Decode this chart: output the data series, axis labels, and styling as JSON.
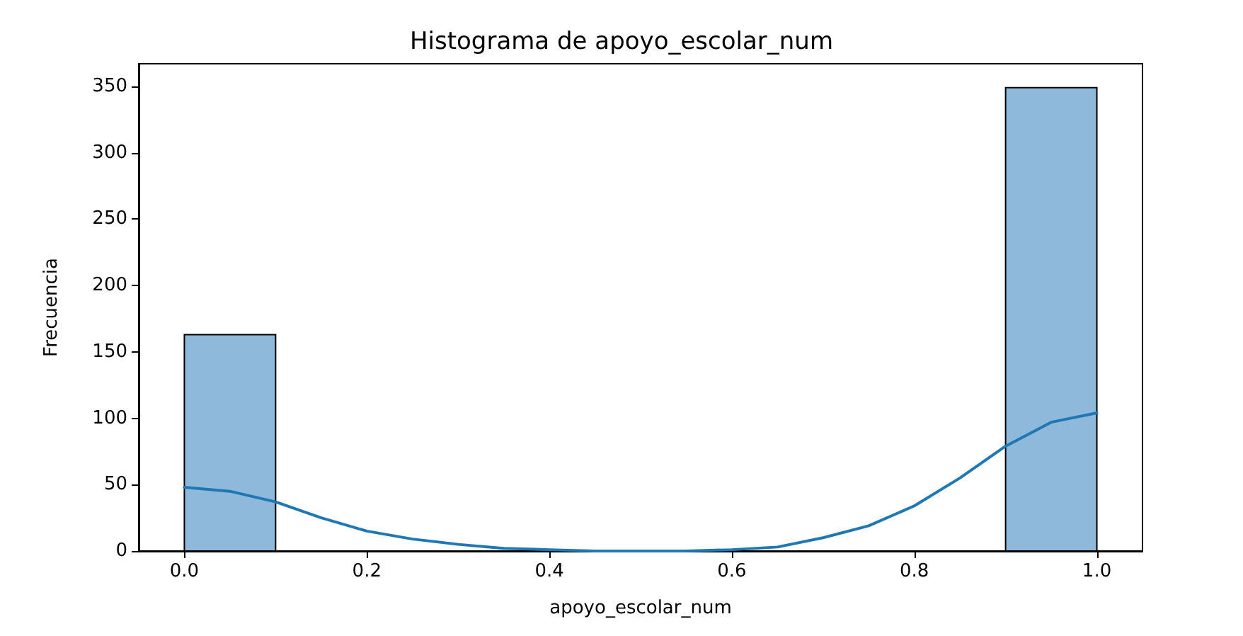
{
  "chart_data": {
    "type": "histogram",
    "title": "Histograma de apoyo_escolar_num",
    "xlabel": "apoyo_escolar_num",
    "ylabel": "Frecuencia",
    "bins": [
      0,
      0.1,
      0.2,
      0.3,
      0.4,
      0.5,
      0.6,
      0.7,
      0.8,
      0.9,
      1.0
    ],
    "values": [
      163,
      0,
      0,
      0,
      0,
      0,
      0,
      0,
      0,
      349
    ],
    "color": "#8fb9da",
    "series": [
      {
        "type": "line",
        "color": "#1f77b4",
        "x": [
          0,
          0.05,
          0.1,
          0.15,
          0.2,
          0.25,
          0.3,
          0.35,
          0.4,
          0.45,
          0.5,
          0.55,
          0.6,
          0.65,
          0.7,
          0.75,
          0.8,
          0.85,
          0.9,
          0.95,
          1.0
        ],
        "values": [
          48,
          45,
          37,
          25,
          15,
          9,
          5,
          2,
          1,
          0,
          0,
          0,
          1,
          3,
          10,
          19,
          34,
          55,
          79,
          97,
          104
        ]
      }
    ],
    "xlim": [
      -0.05,
      1.05
    ],
    "ylim": [
      0,
      367
    ],
    "xticks": [
      {
        "value": 0,
        "label": "0.0"
      },
      0.2,
      0.4,
      0.6,
      0.8,
      {
        "value": 1.0,
        "label": "1.0"
      }
    ],
    "yticks": [
      0,
      50,
      100,
      150,
      200,
      250,
      300,
      350
    ],
    "grid": false,
    "marker": "none",
    "line_style": "solid"
  }
}
